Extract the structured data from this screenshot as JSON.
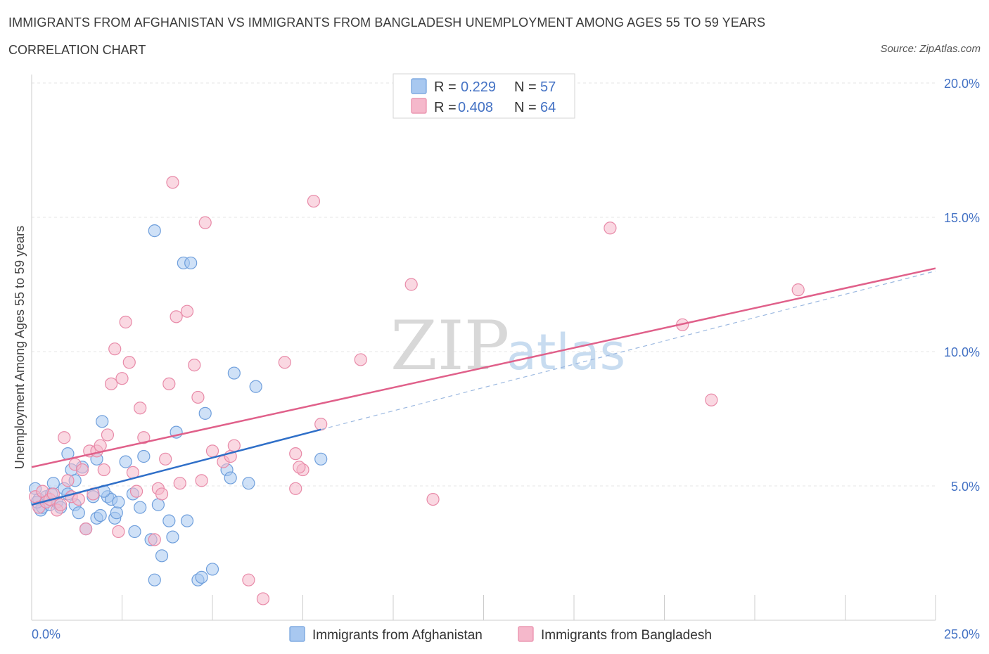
{
  "header": {
    "title": "IMMIGRANTS FROM AFGHANISTAN VS IMMIGRANTS FROM BANGLADESH UNEMPLOYMENT AMONG AGES 55 TO 59 YEARS",
    "subtitle": "CORRELATION CHART",
    "source": "Source: ZipAtlas.com"
  },
  "watermark": {
    "zip": "ZIP",
    "atlas": "atlas"
  },
  "legend": {
    "r_label": "R =",
    "n_label": "N =",
    "rows": [
      {
        "r": "0.229",
        "n": "57",
        "color": "#a8c8f0"
      },
      {
        "r": "0.408",
        "n": "64",
        "color": "#f5b8cb"
      }
    ]
  },
  "colors": {
    "afghanistan_fill": "#a8c8f0",
    "afghanistan_stroke": "#6f9fdc",
    "afghanistan_line": "#2f6fc8",
    "bangladesh_fill": "#f5b8cb",
    "bangladesh_stroke": "#e88aa8",
    "bangladesh_line": "#e0608a",
    "axis_text": "#4472c4"
  },
  "chart_data": {
    "type": "scatter",
    "xlabel": "",
    "ylabel": "Unemployment Among Ages 55 to 59 years",
    "xlim": [
      0,
      25
    ],
    "ylim": [
      0,
      20
    ],
    "x_tick_labels": [
      "0.0%",
      "25.0%"
    ],
    "y_ticks": [
      5,
      10,
      15,
      20
    ],
    "y_tick_labels": [
      "5.0%",
      "10.0%",
      "15.0%",
      "20.0%"
    ],
    "grid": true,
    "legend_position": "top-center",
    "series": [
      {
        "name": "Immigrants from Afghanistan",
        "trend": {
          "x": [
            0,
            8
          ],
          "y": [
            4.3,
            7.1
          ],
          "dashed_extension_to": [
            25,
            13.0
          ]
        },
        "points": [
          [
            0.1,
            4.9
          ],
          [
            0.2,
            4.5
          ],
          [
            0.25,
            4.1
          ],
          [
            0.3,
            4.2
          ],
          [
            0.4,
            4.6
          ],
          [
            0.5,
            4.3
          ],
          [
            0.6,
            5.1
          ],
          [
            0.7,
            4.4
          ],
          [
            0.8,
            4.2
          ],
          [
            0.9,
            4.9
          ],
          [
            1.0,
            4.7
          ],
          [
            1.0,
            6.2
          ],
          [
            1.1,
            5.6
          ],
          [
            1.2,
            5.2
          ],
          [
            1.2,
            4.3
          ],
          [
            1.3,
            4.0
          ],
          [
            1.4,
            5.7
          ],
          [
            1.5,
            3.4
          ],
          [
            1.7,
            4.6
          ],
          [
            1.8,
            3.8
          ],
          [
            1.8,
            6.0
          ],
          [
            1.9,
            3.9
          ],
          [
            1.95,
            7.4
          ],
          [
            2.1,
            4.6
          ],
          [
            2.2,
            4.5
          ],
          [
            2.3,
            3.8
          ],
          [
            2.35,
            4.0
          ],
          [
            2.4,
            4.4
          ],
          [
            2.6,
            5.9
          ],
          [
            2.8,
            4.7
          ],
          [
            2.85,
            3.3
          ],
          [
            3.0,
            4.2
          ],
          [
            3.1,
            6.1
          ],
          [
            3.3,
            3.0
          ],
          [
            3.4,
            1.5
          ],
          [
            3.4,
            14.5
          ],
          [
            3.6,
            2.4
          ],
          [
            3.8,
            3.7
          ],
          [
            3.9,
            3.1
          ],
          [
            4.0,
            7.0
          ],
          [
            4.3,
            3.7
          ],
          [
            4.6,
            1.5
          ],
          [
            4.7,
            1.6
          ],
          [
            3.5,
            4.3
          ],
          [
            4.8,
            7.7
          ],
          [
            5.0,
            1.9
          ],
          [
            5.4,
            5.6
          ],
          [
            5.5,
            5.3
          ],
          [
            5.6,
            9.2
          ],
          [
            6.0,
            5.1
          ],
          [
            6.2,
            8.7
          ],
          [
            4.2,
            13.3
          ],
          [
            4.4,
            13.3
          ],
          [
            8.0,
            6.0
          ],
          [
            2.0,
            4.8
          ],
          [
            0.15,
            4.4
          ],
          [
            0.55,
            4.7
          ]
        ]
      },
      {
        "name": "Immigrants from Bangladesh",
        "trend": {
          "x": [
            0,
            25
          ],
          "y": [
            5.7,
            13.1
          ]
        },
        "points": [
          [
            0.1,
            4.6
          ],
          [
            0.2,
            4.2
          ],
          [
            0.3,
            4.8
          ],
          [
            0.4,
            4.4
          ],
          [
            0.5,
            4.5
          ],
          [
            0.6,
            4.7
          ],
          [
            0.7,
            4.1
          ],
          [
            0.8,
            4.3
          ],
          [
            0.9,
            6.8
          ],
          [
            1.0,
            5.2
          ],
          [
            1.1,
            4.6
          ],
          [
            1.2,
            5.8
          ],
          [
            1.3,
            4.5
          ],
          [
            1.4,
            5.6
          ],
          [
            1.5,
            3.4
          ],
          [
            1.6,
            6.3
          ],
          [
            1.7,
            4.7
          ],
          [
            1.8,
            6.3
          ],
          [
            1.9,
            6.5
          ],
          [
            2.0,
            5.6
          ],
          [
            2.1,
            6.9
          ],
          [
            2.2,
            8.8
          ],
          [
            2.3,
            10.1
          ],
          [
            2.4,
            3.3
          ],
          [
            2.5,
            9.0
          ],
          [
            2.6,
            11.1
          ],
          [
            2.7,
            9.6
          ],
          [
            2.8,
            5.5
          ],
          [
            2.9,
            4.8
          ],
          [
            3.0,
            7.9
          ],
          [
            3.1,
            6.8
          ],
          [
            3.4,
            3.0
          ],
          [
            3.5,
            4.9
          ],
          [
            3.6,
            4.7
          ],
          [
            3.7,
            6.0
          ],
          [
            3.8,
            8.8
          ],
          [
            3.9,
            16.3
          ],
          [
            4.0,
            11.3
          ],
          [
            4.1,
            5.1
          ],
          [
            4.3,
            11.5
          ],
          [
            4.5,
            9.5
          ],
          [
            4.6,
            8.3
          ],
          [
            4.7,
            5.2
          ],
          [
            4.8,
            14.8
          ],
          [
            5.0,
            6.3
          ],
          [
            5.3,
            5.9
          ],
          [
            5.5,
            6.1
          ],
          [
            5.6,
            6.5
          ],
          [
            6.0,
            1.5
          ],
          [
            6.4,
            0.8
          ],
          [
            7.0,
            9.6
          ],
          [
            7.3,
            6.2
          ],
          [
            7.3,
            4.9
          ],
          [
            7.5,
            5.6
          ],
          [
            7.8,
            15.6
          ],
          [
            8.0,
            7.3
          ],
          [
            9.1,
            9.7
          ],
          [
            10.5,
            12.5
          ],
          [
            11.1,
            4.5
          ],
          [
            16.0,
            14.6
          ],
          [
            18.0,
            11.0
          ],
          [
            18.8,
            8.2
          ],
          [
            21.2,
            12.3
          ],
          [
            7.4,
            5.7
          ]
        ]
      }
    ]
  },
  "bottom_legend": [
    {
      "label": "Immigrants from Afghanistan"
    },
    {
      "label": "Immigrants from Bangladesh"
    }
  ]
}
